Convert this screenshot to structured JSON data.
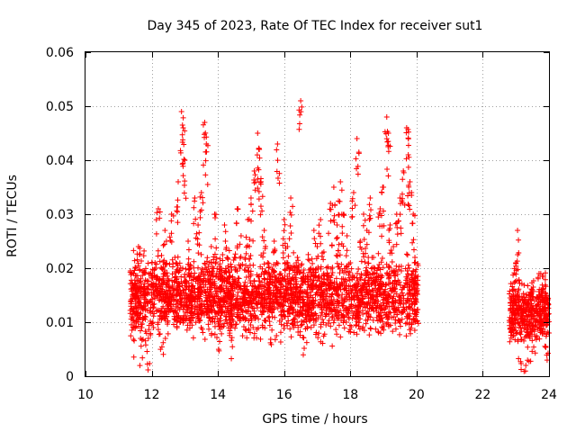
{
  "chart_data": {
    "type": "scatter",
    "title": "Day 345 of 2023, Rate Of TEC Index for receiver sut1",
    "xlabel": "GPS time / hours",
    "ylabel": "ROTI / TECUs",
    "xlim": [
      10,
      24
    ],
    "ylim": [
      0,
      0.06
    ],
    "x_ticks": [
      10,
      12,
      14,
      16,
      18,
      20,
      22,
      24
    ],
    "y_ticks": [
      0,
      0.01,
      0.02,
      0.03,
      0.04,
      0.05,
      0.06
    ],
    "x_tick_labels": [
      "10",
      "12",
      "14",
      "16",
      "18",
      "20",
      "22",
      "24"
    ],
    "y_tick_labels": [
      "0",
      "0.01",
      "0.02",
      "0.03",
      "0.04",
      "0.05",
      "0.06"
    ],
    "grid": true,
    "marker": "+",
    "color": "#ff0000",
    "series": [
      {
        "points": [
          [
            11.4,
            0.011
          ],
          [
            11.5,
            0.016
          ],
          [
            11.6,
            0.024
          ],
          [
            11.7,
            0.009
          ],
          [
            11.8,
            0.013
          ],
          [
            11.9,
            0.007
          ],
          [
            12.0,
            0.015
          ],
          [
            12.1,
            0.021
          ],
          [
            12.2,
            0.031
          ],
          [
            12.3,
            0.012
          ],
          [
            12.4,
            0.027
          ],
          [
            12.5,
            0.018
          ],
          [
            12.6,
            0.03
          ],
          [
            12.7,
            0.022
          ],
          [
            12.8,
            0.036
          ],
          [
            12.9,
            0.049
          ],
          [
            12.95,
            0.046
          ],
          [
            13.0,
            0.04
          ],
          [
            13.1,
            0.025
          ],
          [
            13.2,
            0.019
          ],
          [
            13.3,
            0.033
          ],
          [
            13.4,
            0.028
          ],
          [
            13.5,
            0.034
          ],
          [
            13.6,
            0.047
          ],
          [
            13.65,
            0.043
          ],
          [
            13.7,
            0.015
          ],
          [
            13.8,
            0.024
          ],
          [
            13.9,
            0.03
          ],
          [
            14.0,
            0.012
          ],
          [
            14.1,
            0.02
          ],
          [
            14.2,
            0.028
          ],
          [
            14.3,
            0.018
          ],
          [
            14.4,
            0.009
          ],
          [
            14.5,
            0.022
          ],
          [
            14.6,
            0.031
          ],
          [
            14.7,
            0.026
          ],
          [
            14.8,
            0.016
          ],
          [
            14.9,
            0.029
          ],
          [
            15.0,
            0.033
          ],
          [
            15.1,
            0.038
          ],
          [
            15.2,
            0.045
          ],
          [
            15.25,
            0.042
          ],
          [
            15.3,
            0.036
          ],
          [
            15.4,
            0.027
          ],
          [
            15.5,
            0.021
          ],
          [
            15.6,
            0.013
          ],
          [
            15.7,
            0.025
          ],
          [
            15.8,
            0.043
          ],
          [
            15.9,
            0.019
          ],
          [
            16.0,
            0.029
          ],
          [
            16.1,
            0.024
          ],
          [
            16.2,
            0.033
          ],
          [
            16.3,
            0.017
          ],
          [
            16.4,
            0.022
          ],
          [
            16.5,
            0.051
          ],
          [
            16.6,
            0.01
          ],
          [
            16.7,
            0.016
          ],
          [
            16.8,
            0.02
          ],
          [
            16.9,
            0.027
          ],
          [
            17.0,
            0.024
          ],
          [
            17.1,
            0.029
          ],
          [
            17.2,
            0.023
          ],
          [
            17.3,
            0.019
          ],
          [
            17.4,
            0.032
          ],
          [
            17.5,
            0.035
          ],
          [
            17.6,
            0.028
          ],
          [
            17.7,
            0.036
          ],
          [
            17.8,
            0.03
          ],
          [
            17.9,
            0.026
          ],
          [
            18.0,
            0.021
          ],
          [
            18.1,
            0.034
          ],
          [
            18.2,
            0.044
          ],
          [
            18.3,
            0.025
          ],
          [
            18.4,
            0.03
          ],
          [
            18.5,
            0.027
          ],
          [
            18.6,
            0.033
          ],
          [
            18.7,
            0.022
          ],
          [
            18.8,
            0.019
          ],
          [
            18.9,
            0.031
          ],
          [
            19.0,
            0.035
          ],
          [
            19.1,
            0.048
          ],
          [
            19.15,
            0.045
          ],
          [
            19.2,
            0.028
          ],
          [
            19.3,
            0.024
          ],
          [
            19.4,
            0.03
          ],
          [
            19.5,
            0.033
          ],
          [
            19.6,
            0.038
          ],
          [
            19.7,
            0.046
          ],
          [
            19.75,
            0.041
          ],
          [
            19.8,
            0.036
          ],
          [
            19.9,
            0.03
          ],
          [
            19.95,
            0.022
          ],
          [
            20.0,
            0.017
          ],
          [
            22.9,
            0.013
          ],
          [
            23.0,
            0.021
          ],
          [
            23.05,
            0.027
          ],
          [
            23.1,
            0.009
          ],
          [
            23.2,
            0.014
          ],
          [
            23.3,
            0.002
          ],
          [
            23.4,
            0.01
          ],
          [
            23.5,
            0.016
          ],
          [
            23.6,
            0.012
          ],
          [
            23.7,
            0.019
          ],
          [
            23.8,
            0.015
          ],
          [
            23.9,
            0.011
          ],
          [
            24.0,
            0.008
          ]
        ]
      }
    ],
    "dense_band": {
      "segments": [
        {
          "x": [
            11.35,
            20.05
          ],
          "y_low": 0.005,
          "y_high": 0.022,
          "count": 2600
        },
        {
          "x": [
            22.8,
            24.0
          ],
          "y_low": 0.004,
          "y_high": 0.018,
          "count": 420
        }
      ]
    }
  }
}
